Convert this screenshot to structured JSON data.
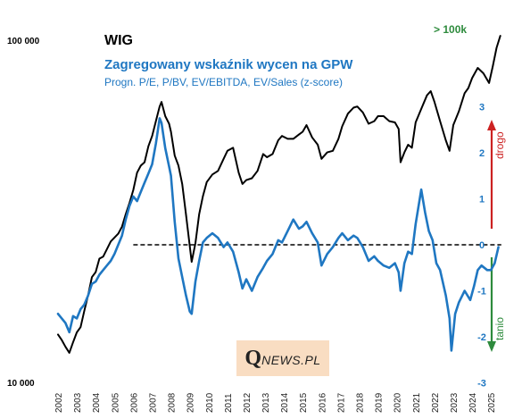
{
  "chart_data": {
    "type": "line",
    "title": "WIG",
    "subtitle": "Zagregowany wskaźnik wycen na GPW",
    "subtitle2": "Progn. P/E, P/BV, EV/EBITDA, EV/Sales (z-score)",
    "x_ticks": [
      "2002",
      "2003",
      "2004",
      "2005",
      "2006",
      "2007",
      "2008",
      "2009",
      "2010",
      "2011",
      "2012",
      "2013",
      "2014",
      "2015",
      "2016",
      "2017",
      "2018",
      "2019",
      "2020",
      "2021",
      "2022",
      "2023",
      "2024",
      "2025"
    ],
    "xlim": [
      2002,
      2025.6
    ],
    "y_left": {
      "scale": "log",
      "ylim": [
        10000,
        100000
      ],
      "tick_labels": [
        "100 000",
        "10 000"
      ],
      "tick_values": [
        100000,
        10000
      ]
    },
    "y_right": {
      "ylim": [
        -3,
        3.3
      ],
      "ticks": [
        3,
        2,
        1,
        0,
        -1,
        -2,
        -3
      ],
      "tick_labels": [
        "3",
        "2",
        "1",
        "0",
        "-1",
        "-2",
        "-3"
      ]
    },
    "reference_line": {
      "y": 0,
      "axis": "right",
      "style": "dashed"
    },
    "annotations": {
      "top_note": "> 100k",
      "expensive": "drogo",
      "cheap": "tanio"
    },
    "colors": {
      "wig": "#000000",
      "zscore": "#1f77c2",
      "expensive": "#cc2222",
      "cheap": "#2e8b3d"
    },
    "series": [
      {
        "axis": "left",
        "points": [
          [
            2002.0,
            13800
          ],
          [
            2002.2,
            13300
          ],
          [
            2002.4,
            12700
          ],
          [
            2002.6,
            12200
          ],
          [
            2002.8,
            13100
          ],
          [
            2003.0,
            14000
          ],
          [
            2003.2,
            14500
          ],
          [
            2003.4,
            16200
          ],
          [
            2003.6,
            18000
          ],
          [
            2003.8,
            20300
          ],
          [
            2004.0,
            21000
          ],
          [
            2004.2,
            23000
          ],
          [
            2004.4,
            23300
          ],
          [
            2004.6,
            24500
          ],
          [
            2004.8,
            25800
          ],
          [
            2005.0,
            26500
          ],
          [
            2005.2,
            27200
          ],
          [
            2005.4,
            28500
          ],
          [
            2005.6,
            31000
          ],
          [
            2005.8,
            33500
          ],
          [
            2006.0,
            36500
          ],
          [
            2006.2,
            41000
          ],
          [
            2006.4,
            43000
          ],
          [
            2006.6,
            44000
          ],
          [
            2006.8,
            49000
          ],
          [
            2007.0,
            52500
          ],
          [
            2007.2,
            58000
          ],
          [
            2007.4,
            64000
          ],
          [
            2007.5,
            66000
          ],
          [
            2007.7,
            60000
          ],
          [
            2007.9,
            57000
          ],
          [
            2008.0,
            54000
          ],
          [
            2008.2,
            46000
          ],
          [
            2008.4,
            43000
          ],
          [
            2008.6,
            38000
          ],
          [
            2008.8,
            31000
          ],
          [
            2009.0,
            25000
          ],
          [
            2009.1,
            22500
          ],
          [
            2009.3,
            25500
          ],
          [
            2009.5,
            31000
          ],
          [
            2009.7,
            35000
          ],
          [
            2009.9,
            38500
          ],
          [
            2010.2,
            40500
          ],
          [
            2010.5,
            41500
          ],
          [
            2010.8,
            45000
          ],
          [
            2011.0,
            47500
          ],
          [
            2011.3,
            48500
          ],
          [
            2011.6,
            41000
          ],
          [
            2011.8,
            38000
          ],
          [
            2012.0,
            39000
          ],
          [
            2012.3,
            39500
          ],
          [
            2012.6,
            41500
          ],
          [
            2012.9,
            46500
          ],
          [
            2013.1,
            45500
          ],
          [
            2013.4,
            46500
          ],
          [
            2013.7,
            51000
          ],
          [
            2013.9,
            52500
          ],
          [
            2014.2,
            51500
          ],
          [
            2014.5,
            51500
          ],
          [
            2014.8,
            53000
          ],
          [
            2015.0,
            54000
          ],
          [
            2015.2,
            56500
          ],
          [
            2015.5,
            52000
          ],
          [
            2015.8,
            49500
          ],
          [
            2016.0,
            45000
          ],
          [
            2016.3,
            47000
          ],
          [
            2016.6,
            47500
          ],
          [
            2016.9,
            51500
          ],
          [
            2017.1,
            56000
          ],
          [
            2017.4,
            61000
          ],
          [
            2017.7,
            63500
          ],
          [
            2017.9,
            64000
          ],
          [
            2018.2,
            61500
          ],
          [
            2018.5,
            57000
          ],
          [
            2018.8,
            58000
          ],
          [
            2019.0,
            60000
          ],
          [
            2019.3,
            60000
          ],
          [
            2019.6,
            58000
          ],
          [
            2019.9,
            57500
          ],
          [
            2020.1,
            55000
          ],
          [
            2020.2,
            44000
          ],
          [
            2020.4,
            47000
          ],
          [
            2020.6,
            49500
          ],
          [
            2020.8,
            48500
          ],
          [
            2021.0,
            57500
          ],
          [
            2021.3,
            63000
          ],
          [
            2021.6,
            69000
          ],
          [
            2021.8,
            71000
          ],
          [
            2022.0,
            66000
          ],
          [
            2022.3,
            58000
          ],
          [
            2022.6,
            51000
          ],
          [
            2022.8,
            47500
          ],
          [
            2023.0,
            56500
          ],
          [
            2023.3,
            62000
          ],
          [
            2023.6,
            70000
          ],
          [
            2023.8,
            72500
          ],
          [
            2024.0,
            77500
          ],
          [
            2024.3,
            83000
          ],
          [
            2024.6,
            80000
          ],
          [
            2024.9,
            75000
          ],
          [
            2025.1,
            84000
          ],
          [
            2025.3,
            95000
          ],
          [
            2025.5,
            103000
          ]
        ]
      },
      {
        "axis": "right",
        "points": [
          [
            2002.0,
            -1.5
          ],
          [
            2002.2,
            -1.6
          ],
          [
            2002.4,
            -1.7
          ],
          [
            2002.6,
            -1.9
          ],
          [
            2002.8,
            -1.55
          ],
          [
            2003.0,
            -1.6
          ],
          [
            2003.2,
            -1.4
          ],
          [
            2003.4,
            -1.3
          ],
          [
            2003.6,
            -1.1
          ],
          [
            2003.8,
            -0.85
          ],
          [
            2004.0,
            -0.8
          ],
          [
            2004.2,
            -0.65
          ],
          [
            2004.4,
            -0.55
          ],
          [
            2004.6,
            -0.45
          ],
          [
            2004.8,
            -0.35
          ],
          [
            2005.0,
            -0.2
          ],
          [
            2005.2,
            0.0
          ],
          [
            2005.4,
            0.2
          ],
          [
            2005.6,
            0.55
          ],
          [
            2005.8,
            0.85
          ],
          [
            2006.0,
            1.05
          ],
          [
            2006.2,
            0.95
          ],
          [
            2006.4,
            1.15
          ],
          [
            2006.6,
            1.35
          ],
          [
            2006.8,
            1.55
          ],
          [
            2007.0,
            1.75
          ],
          [
            2007.2,
            2.2
          ],
          [
            2007.4,
            2.75
          ],
          [
            2007.5,
            2.65
          ],
          [
            2007.7,
            2.1
          ],
          [
            2007.9,
            1.7
          ],
          [
            2008.0,
            1.5
          ],
          [
            2008.2,
            0.5
          ],
          [
            2008.4,
            -0.3
          ],
          [
            2008.6,
            -0.7
          ],
          [
            2008.8,
            -1.1
          ],
          [
            2009.0,
            -1.45
          ],
          [
            2009.1,
            -1.5
          ],
          [
            2009.3,
            -0.8
          ],
          [
            2009.5,
            -0.35
          ],
          [
            2009.7,
            0.05
          ],
          [
            2009.9,
            0.15
          ],
          [
            2010.2,
            0.25
          ],
          [
            2010.5,
            0.15
          ],
          [
            2010.8,
            -0.05
          ],
          [
            2011.0,
            0.05
          ],
          [
            2011.3,
            -0.15
          ],
          [
            2011.6,
            -0.6
          ],
          [
            2011.8,
            -0.95
          ],
          [
            2012.0,
            -0.75
          ],
          [
            2012.3,
            -1.0
          ],
          [
            2012.6,
            -0.7
          ],
          [
            2012.9,
            -0.5
          ],
          [
            2013.1,
            -0.35
          ],
          [
            2013.4,
            -0.2
          ],
          [
            2013.7,
            0.1
          ],
          [
            2013.9,
            0.05
          ],
          [
            2014.2,
            0.3
          ],
          [
            2014.5,
            0.55
          ],
          [
            2014.8,
            0.35
          ],
          [
            2015.0,
            0.4
          ],
          [
            2015.2,
            0.5
          ],
          [
            2015.5,
            0.25
          ],
          [
            2015.8,
            0.05
          ],
          [
            2016.0,
            -0.45
          ],
          [
            2016.3,
            -0.2
          ],
          [
            2016.6,
            -0.05
          ],
          [
            2016.9,
            0.15
          ],
          [
            2017.1,
            0.25
          ],
          [
            2017.4,
            0.1
          ],
          [
            2017.7,
            0.2
          ],
          [
            2017.9,
            0.15
          ],
          [
            2018.2,
            -0.05
          ],
          [
            2018.5,
            -0.35
          ],
          [
            2018.8,
            -0.25
          ],
          [
            2019.0,
            -0.35
          ],
          [
            2019.3,
            -0.45
          ],
          [
            2019.6,
            -0.5
          ],
          [
            2019.9,
            -0.4
          ],
          [
            2020.1,
            -0.6
          ],
          [
            2020.2,
            -1.0
          ],
          [
            2020.4,
            -0.4
          ],
          [
            2020.6,
            -0.15
          ],
          [
            2020.8,
            -0.2
          ],
          [
            2021.0,
            0.45
          ],
          [
            2021.2,
            0.95
          ],
          [
            2021.3,
            1.2
          ],
          [
            2021.5,
            0.7
          ],
          [
            2021.7,
            0.3
          ],
          [
            2021.9,
            0.1
          ],
          [
            2022.1,
            -0.4
          ],
          [
            2022.3,
            -0.55
          ],
          [
            2022.6,
            -1.1
          ],
          [
            2022.8,
            -1.6
          ],
          [
            2022.9,
            -2.3
          ],
          [
            2023.1,
            -1.5
          ],
          [
            2023.3,
            -1.25
          ],
          [
            2023.6,
            -1.0
          ],
          [
            2023.9,
            -1.2
          ],
          [
            2024.1,
            -0.9
          ],
          [
            2024.3,
            -0.55
          ],
          [
            2024.5,
            -0.45
          ],
          [
            2024.8,
            -0.55
          ],
          [
            2025.0,
            -0.55
          ],
          [
            2025.2,
            -0.4
          ],
          [
            2025.4,
            -0.05
          ]
        ]
      }
    ]
  }
}
